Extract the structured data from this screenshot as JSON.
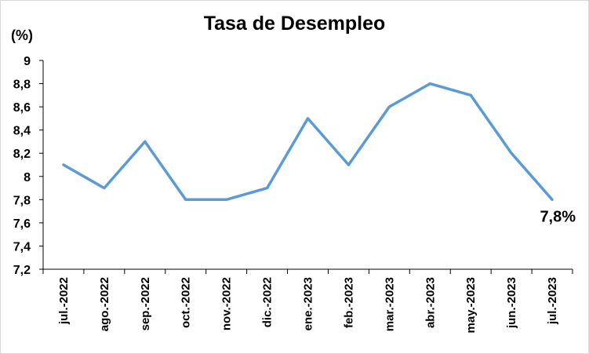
{
  "chart_data": {
    "type": "line",
    "title": "Tasa de Desempleo",
    "ylabel": "(%)",
    "xlabel": "",
    "categories": [
      "jul.-2022",
      "ago.-2022",
      "sep.-2022",
      "oct.-2022",
      "nov.-2022",
      "dic.-2022",
      "ene.-2023",
      "feb.-2023",
      "mar.-2023",
      "abr.-2023",
      "may.-2023",
      "jun.-2023",
      "jul.-2023"
    ],
    "series": [
      {
        "values": [
          8.1,
          7.9,
          8.3,
          7.8,
          7.8,
          7.9,
          8.5,
          8.1,
          8.6,
          8.8,
          8.7,
          8.2,
          7.8
        ]
      }
    ],
    "ylim": [
      7.2,
      9.0
    ],
    "yticks": [
      "7,2",
      "7,4",
      "7,6",
      "7,8",
      "8",
      "8,2",
      "8,4",
      "8,6",
      "8,8",
      "9"
    ],
    "grid": false,
    "line_color": "#5b9bd5",
    "end_label": "7,8%"
  }
}
